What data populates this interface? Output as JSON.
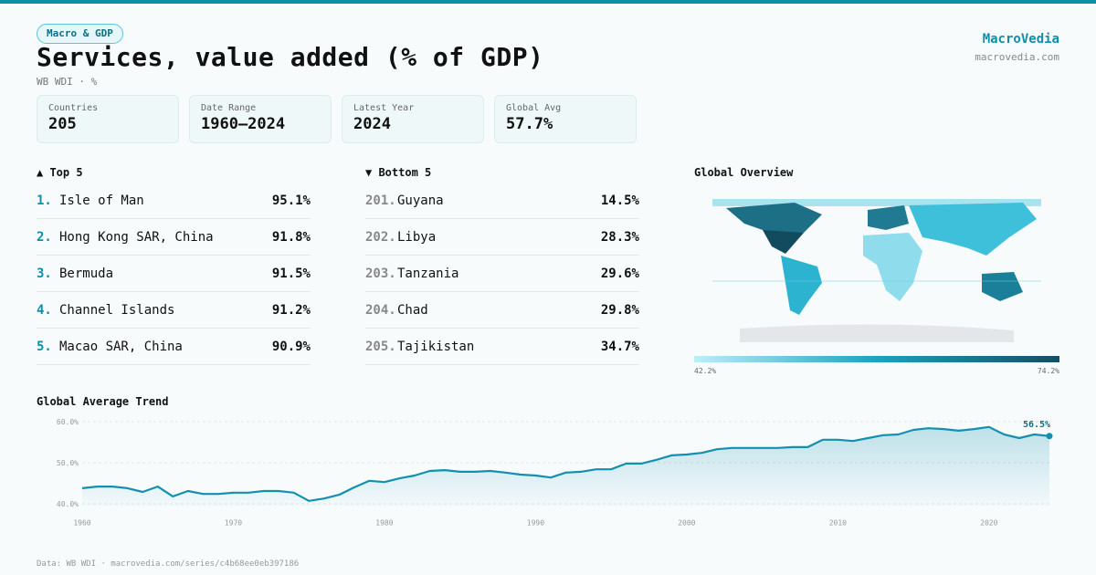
{
  "header": {
    "tag": "Macro & GDP",
    "title": "Services, value added (% of GDP)",
    "subtitle": "WB WDI · %",
    "brand": "MacroVedia",
    "site": "macrovedia.com"
  },
  "stats": [
    {
      "label": "Countries",
      "value": "205"
    },
    {
      "label": "Date Range",
      "value": "1960–2024"
    },
    {
      "label": "Latest Year",
      "value": "2024"
    },
    {
      "label": "Global Avg",
      "value": "57.7%"
    }
  ],
  "top5": {
    "title": "▲ Top 5",
    "rows": [
      {
        "rank": "1.",
        "name": "Isle of Man",
        "value": "95.1%"
      },
      {
        "rank": "2.",
        "name": "Hong Kong SAR, China",
        "value": "91.8%"
      },
      {
        "rank": "3.",
        "name": "Bermuda",
        "value": "91.5%"
      },
      {
        "rank": "4.",
        "name": "Channel Islands",
        "value": "91.2%"
      },
      {
        "rank": "5.",
        "name": "Macao SAR, China",
        "value": "90.9%"
      }
    ]
  },
  "bottom5": {
    "title": "▼ Bottom 5",
    "rows": [
      {
        "rank": "201.",
        "name": "Guyana",
        "value": "14.5%"
      },
      {
        "rank": "202.",
        "name": "Libya",
        "value": "28.3%"
      },
      {
        "rank": "203.",
        "name": "Tanzania",
        "value": "29.6%"
      },
      {
        "rank": "204.",
        "name": "Chad",
        "value": "29.8%"
      },
      {
        "rank": "205.",
        "name": "Tajikistan",
        "value": "34.7%"
      }
    ]
  },
  "map": {
    "title": "Global Overview",
    "legend_min": "42.2%",
    "legend_max": "74.2%"
  },
  "chart_data": {
    "type": "line",
    "title": "Global Average Trend",
    "color": "#1390b0",
    "x": [
      1960,
      1961,
      1962,
      1963,
      1964,
      1965,
      1966,
      1967,
      1968,
      1969,
      1970,
      1971,
      1972,
      1973,
      1974,
      1975,
      1976,
      1977,
      1978,
      1979,
      1980,
      1981,
      1982,
      1983,
      1984,
      1985,
      1986,
      1987,
      1988,
      1989,
      1990,
      1991,
      1992,
      1993,
      1994,
      1995,
      1996,
      1997,
      1998,
      1999,
      2000,
      2001,
      2002,
      2003,
      2004,
      2005,
      2006,
      2007,
      2008,
      2009,
      2010,
      2011,
      2012,
      2013,
      2014,
      2015,
      2016,
      2017,
      2018,
      2019,
      2020,
      2021,
      2022,
      2023,
      2024
    ],
    "values": [
      43.8,
      44.2,
      44.2,
      43.8,
      42.9,
      44.2,
      41.8,
      43.1,
      42.4,
      42.4,
      42.7,
      42.7,
      43.1,
      43.1,
      42.7,
      40.7,
      41.3,
      42.2,
      44.0,
      45.6,
      45.3,
      46.2,
      46.9,
      48.0,
      48.2,
      47.8,
      47.8,
      48.0,
      47.6,
      47.1,
      46.9,
      46.4,
      47.6,
      47.8,
      48.4,
      48.4,
      49.8,
      49.8,
      50.7,
      51.8,
      52.0,
      52.4,
      53.3,
      53.6,
      53.6,
      53.6,
      53.6,
      53.8,
      53.8,
      55.6,
      55.6,
      55.3,
      56.0,
      56.7,
      56.9,
      58.0,
      58.4,
      58.2,
      57.8,
      58.2,
      58.7,
      56.9,
      56.0,
      56.9,
      56.5
    ],
    "value_labels": [
      null,
      null,
      null,
      null,
      null,
      null,
      null,
      null,
      null,
      null,
      null,
      null,
      null,
      null,
      null,
      null,
      null,
      null,
      null,
      null,
      null,
      null,
      null,
      null,
      null,
      null,
      null,
      null,
      null,
      null,
      null,
      null,
      null,
      null,
      null,
      null,
      null,
      null,
      null,
      null,
      null,
      null,
      null,
      null,
      null,
      null,
      null,
      null,
      null,
      null,
      null,
      null,
      null,
      null,
      null,
      null,
      null,
      null,
      null,
      null,
      null,
      null,
      null,
      null,
      "56.5%"
    ],
    "xlim": [
      1960,
      2024
    ],
    "xticks": [
      1960,
      1970,
      1980,
      1990,
      2000,
      2010,
      2020
    ],
    "ylim": [
      39.5,
      61
    ],
    "yticks": [
      {
        "value": 40,
        "label": "40.0%"
      },
      {
        "value": 50,
        "label": "50.0%"
      },
      {
        "value": 60,
        "label": "60.0%"
      }
    ],
    "grid": true
  },
  "footer": "Data: WB WDI · macrovedia.com/series/c4b68ee0eb397186"
}
